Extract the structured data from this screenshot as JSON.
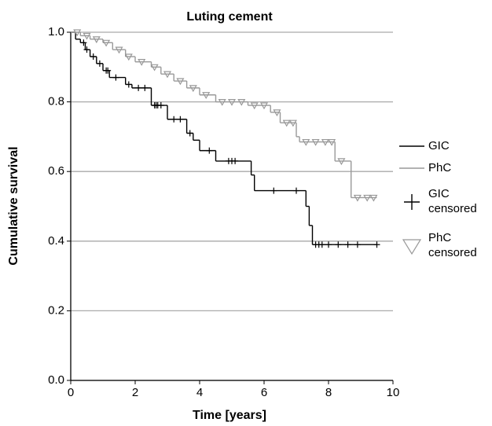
{
  "chart_data": {
    "type": "step",
    "title": "Luting cement",
    "x_label": "Time [years]",
    "y_label": "Cumulative survival",
    "xlim": [
      0,
      10
    ],
    "ylim": [
      0,
      1
    ],
    "xticks": [
      0,
      2,
      4,
      6,
      8,
      10
    ],
    "yticks": [
      {
        "value": 0,
        "label": "0.0"
      },
      {
        "value": 0.2,
        "label": "0.2"
      },
      {
        "value": 0.4,
        "label": "0.4"
      },
      {
        "value": 0.6,
        "label": "0.6"
      },
      {
        "value": 0.8,
        "label": "0.8"
      },
      {
        "value": 1,
        "label": "1.0"
      }
    ],
    "grid": true,
    "legend": "right",
    "series": [
      {
        "name": "GIC",
        "color": "#000000",
        "style": "step",
        "x": [
          0,
          0.15,
          0.3,
          0.45,
          0.6,
          0.8,
          1.0,
          1.2,
          1.7,
          1.9,
          2.5,
          3.0,
          3.6,
          3.8,
          4.0,
          4.5,
          5.6,
          5.7,
          7.3,
          7.4,
          7.5,
          9.5
        ],
        "values": [
          1.0,
          0.98,
          0.97,
          0.95,
          0.93,
          0.91,
          0.89,
          0.87,
          0.85,
          0.84,
          0.79,
          0.75,
          0.71,
          0.69,
          0.66,
          0.63,
          0.59,
          0.545,
          0.5,
          0.445,
          0.39,
          0.39
        ]
      },
      {
        "name": "PhC",
        "color": "#999999",
        "style": "step",
        "x": [
          0,
          0.3,
          0.6,
          1.0,
          1.3,
          1.7,
          2.0,
          2.5,
          2.8,
          3.2,
          3.6,
          4.0,
          4.5,
          5.5,
          6.2,
          6.5,
          7.0,
          7.1,
          8.2,
          8.7,
          9.5
        ],
        "values": [
          1.0,
          0.99,
          0.98,
          0.97,
          0.95,
          0.93,
          0.915,
          0.9,
          0.88,
          0.86,
          0.84,
          0.82,
          0.8,
          0.79,
          0.77,
          0.74,
          0.7,
          0.685,
          0.63,
          0.525,
          0.525
        ]
      },
      {
        "name": "GIC censored",
        "color": "#000000",
        "style": "plus",
        "x": [
          0.4,
          0.5,
          0.7,
          0.9,
          1.1,
          1.15,
          1.4,
          1.8,
          2.1,
          2.3,
          2.6,
          2.65,
          2.7,
          2.8,
          3.2,
          3.4,
          3.7,
          4.3,
          4.9,
          5.0,
          5.1,
          6.3,
          7.0,
          7.6,
          7.7,
          7.8,
          8.0,
          8.3,
          8.6,
          8.9,
          9.5
        ],
        "values": [
          0.97,
          0.95,
          0.93,
          0.91,
          0.89,
          0.89,
          0.87,
          0.85,
          0.84,
          0.84,
          0.79,
          0.79,
          0.79,
          0.79,
          0.75,
          0.75,
          0.71,
          0.66,
          0.63,
          0.63,
          0.63,
          0.545,
          0.545,
          0.39,
          0.39,
          0.39,
          0.39,
          0.39,
          0.39,
          0.39,
          0.39
        ]
      },
      {
        "name": "PhC censored",
        "color": "#999999",
        "style": "triangle",
        "x": [
          0.2,
          0.5,
          0.8,
          1.1,
          1.5,
          1.8,
          2.2,
          2.6,
          3.0,
          3.4,
          3.8,
          4.2,
          4.7,
          5.0,
          5.3,
          5.7,
          6.0,
          6.4,
          6.7,
          6.9,
          7.3,
          7.6,
          7.9,
          8.1,
          8.4,
          8.9,
          9.2,
          9.4
        ],
        "values": [
          1.0,
          0.99,
          0.98,
          0.97,
          0.95,
          0.93,
          0.915,
          0.9,
          0.88,
          0.86,
          0.84,
          0.82,
          0.8,
          0.8,
          0.8,
          0.79,
          0.79,
          0.77,
          0.74,
          0.74,
          0.685,
          0.685,
          0.685,
          0.685,
          0.63,
          0.525,
          0.525,
          0.525
        ]
      }
    ]
  }
}
